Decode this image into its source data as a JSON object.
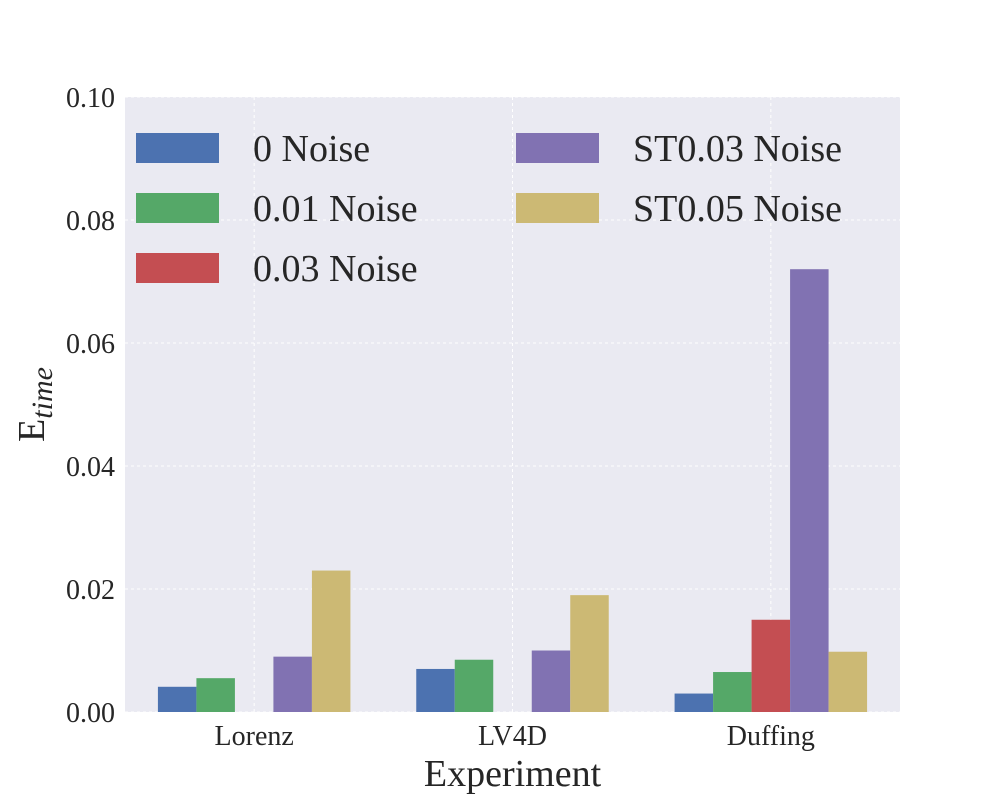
{
  "chart_data": {
    "type": "bar",
    "title": "",
    "xlabel": "Experiment",
    "ylabel_main": "E",
    "ylabel_sub": "time",
    "categories": [
      "Lorenz",
      "LV4D",
      "Duffing"
    ],
    "ylim": [
      0,
      0.1
    ],
    "yticks": [
      0.0,
      0.02,
      0.04,
      0.06,
      0.08,
      0.1
    ],
    "ytick_labels": [
      "0.00",
      "0.02",
      "0.04",
      "0.06",
      "0.08",
      "0.10"
    ],
    "grid": true,
    "legend_position": "top-left, two columns",
    "series": [
      {
        "name": "0 Noise",
        "color": "#4c72b0",
        "values": [
          0.0041,
          0.007,
          0.003
        ]
      },
      {
        "name": "0.01 Noise",
        "color": "#55a868",
        "values": [
          0.0055,
          0.0085,
          0.0065
        ]
      },
      {
        "name": "0.03 Noise",
        "color": "#c44e52",
        "values": [
          0.0,
          0.0,
          0.015
        ]
      },
      {
        "name": "ST0.03 Noise",
        "color": "#8172b2",
        "values": [
          0.009,
          0.01,
          0.072
        ]
      },
      {
        "name": "ST0.05 Noise",
        "color": "#ccb974",
        "values": [
          0.023,
          0.019,
          0.0098
        ]
      }
    ],
    "background_color": "#eaeaf2",
    "grid_color": "#ffffff"
  }
}
